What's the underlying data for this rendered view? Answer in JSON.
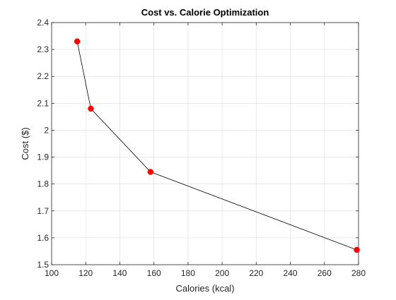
{
  "chart_data": {
    "type": "line",
    "title": "Cost vs. Calorie Optimization",
    "xlabel": "Calories (kcal)",
    "ylabel": "Cost ($)",
    "xlim": [
      100,
      280
    ],
    "ylim": [
      1.5,
      2.4
    ],
    "xticks": [
      100,
      120,
      140,
      160,
      180,
      200,
      220,
      240,
      260,
      280
    ],
    "yticks": [
      1.5,
      1.6,
      1.7,
      1.8,
      1.9,
      2.0,
      2.1,
      2.2,
      2.3,
      2.4
    ],
    "xtick_labels": [
      "100",
      "120",
      "140",
      "160",
      "180",
      "200",
      "220",
      "240",
      "260",
      "280"
    ],
    "ytick_labels": [
      "1.5",
      "1.6",
      "1.7",
      "1.8",
      "1.9",
      "2",
      "2.1",
      "2.2",
      "2.3",
      "2.4"
    ],
    "grid": true,
    "series": [
      {
        "x": [
          115,
          123,
          158,
          279
        ],
        "y": [
          2.33,
          2.08,
          1.845,
          1.555
        ],
        "line_color": "#000000",
        "marker": "circle",
        "marker_color": "#ff0000"
      }
    ]
  }
}
